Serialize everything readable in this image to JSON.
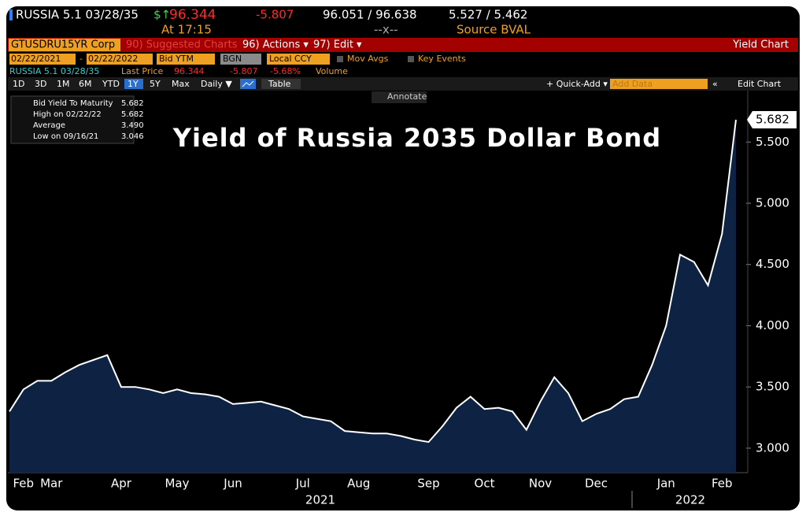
{
  "header": {
    "security": "RUSSIA 5.1 03/28/35",
    "price_prefix": "$↑",
    "price": "96.344",
    "change": "-5.807",
    "bid_ask": "96.051 / 96.638",
    "yields": "5.527 / 5.462",
    "time": "At 17:15",
    "spread": "--x--",
    "source": "Source BVAL"
  },
  "toolbar": {
    "ticker": "GTUSDRU15YR Corp",
    "suggested": "90) Suggested Charts",
    "actions": "96) Actions ▾",
    "edit": "97) Edit ▾",
    "view": "Yield Chart"
  },
  "settings": {
    "start": "02/22/2021",
    "dash": "-",
    "end": "02/22/2022",
    "field": "Bid YTM",
    "source": "BGN",
    "currency": "Local CCY",
    "mov_avgs": "Mov Avgs",
    "key_events": "Key Events"
  },
  "quote": {
    "security": "RUSSIA 5.1 03/28/35",
    "last_label": "Last Price",
    "last": "96.344",
    "change": "-5.807",
    "pct": "-5.68%",
    "volume": "Volume"
  },
  "controls": {
    "ranges": [
      "1D",
      "3D",
      "1M",
      "6M",
      "YTD",
      "1Y",
      "5Y",
      "Max"
    ],
    "period": "Daily ▼",
    "table": "Table",
    "quick_add": "+ Quick-Add ▾",
    "add_data": "Add Data",
    "edit_chart": "Edit Chart",
    "annotate": "Annotate"
  },
  "chart_data": {
    "type": "line",
    "title": "Yield of Russia 2035 Dollar Bond",
    "categories": [
      null,
      "Feb",
      null,
      "Mar",
      null,
      null,
      null,
      null,
      "Apr",
      null,
      null,
      null,
      "May",
      null,
      null,
      null,
      "Jun",
      null,
      null,
      null,
      null,
      "Jul",
      null,
      null,
      null,
      "Aug",
      null,
      null,
      null,
      null,
      "Sep",
      null,
      null,
      null,
      "Oct",
      null,
      null,
      null,
      "Nov",
      null,
      null,
      null,
      "Dec",
      null,
      null,
      null,
      null,
      "Jan",
      null,
      null,
      null,
      "Feb",
      null
    ],
    "values": [
      3.3,
      3.48,
      3.55,
      3.55,
      3.62,
      3.68,
      3.72,
      3.76,
      3.5,
      3.5,
      3.48,
      3.45,
      3.48,
      3.45,
      3.44,
      3.42,
      3.36,
      3.37,
      3.38,
      3.35,
      3.32,
      3.26,
      3.24,
      3.22,
      3.14,
      3.13,
      3.12,
      3.12,
      3.1,
      3.07,
      3.05,
      3.18,
      3.33,
      3.42,
      3.32,
      3.33,
      3.3,
      3.15,
      3.38,
      3.58,
      3.45,
      3.22,
      3.28,
      3.32,
      3.4,
      3.42,
      3.68,
      4.0,
      4.58,
      4.52,
      4.33,
      4.75,
      5.682
    ],
    "color": "#ffffff",
    "fill": "#0e2343",
    "ylim": [
      2.8,
      5.92
    ],
    "yticks": [
      {
        "value": 3,
        "label": "3.000"
      },
      {
        "value": 3.5,
        "label": "3.500"
      },
      {
        "value": 4,
        "label": "4.000"
      },
      {
        "value": 4.5,
        "label": "4.500"
      },
      {
        "value": 5,
        "label": "5.000"
      },
      {
        "value": 5.5,
        "label": "5.500"
      }
    ],
    "year_labels": [
      "2021",
      "2022"
    ],
    "legend": [
      {
        "label": "Bid Yield To Maturity",
        "value": "5.682"
      },
      {
        "label": "High on 02/22/22",
        "value": "5.682"
      },
      {
        "label": "Average",
        "value": "3.490"
      },
      {
        "label": "Low on 09/16/21",
        "value": "3.046"
      }
    ]
  }
}
